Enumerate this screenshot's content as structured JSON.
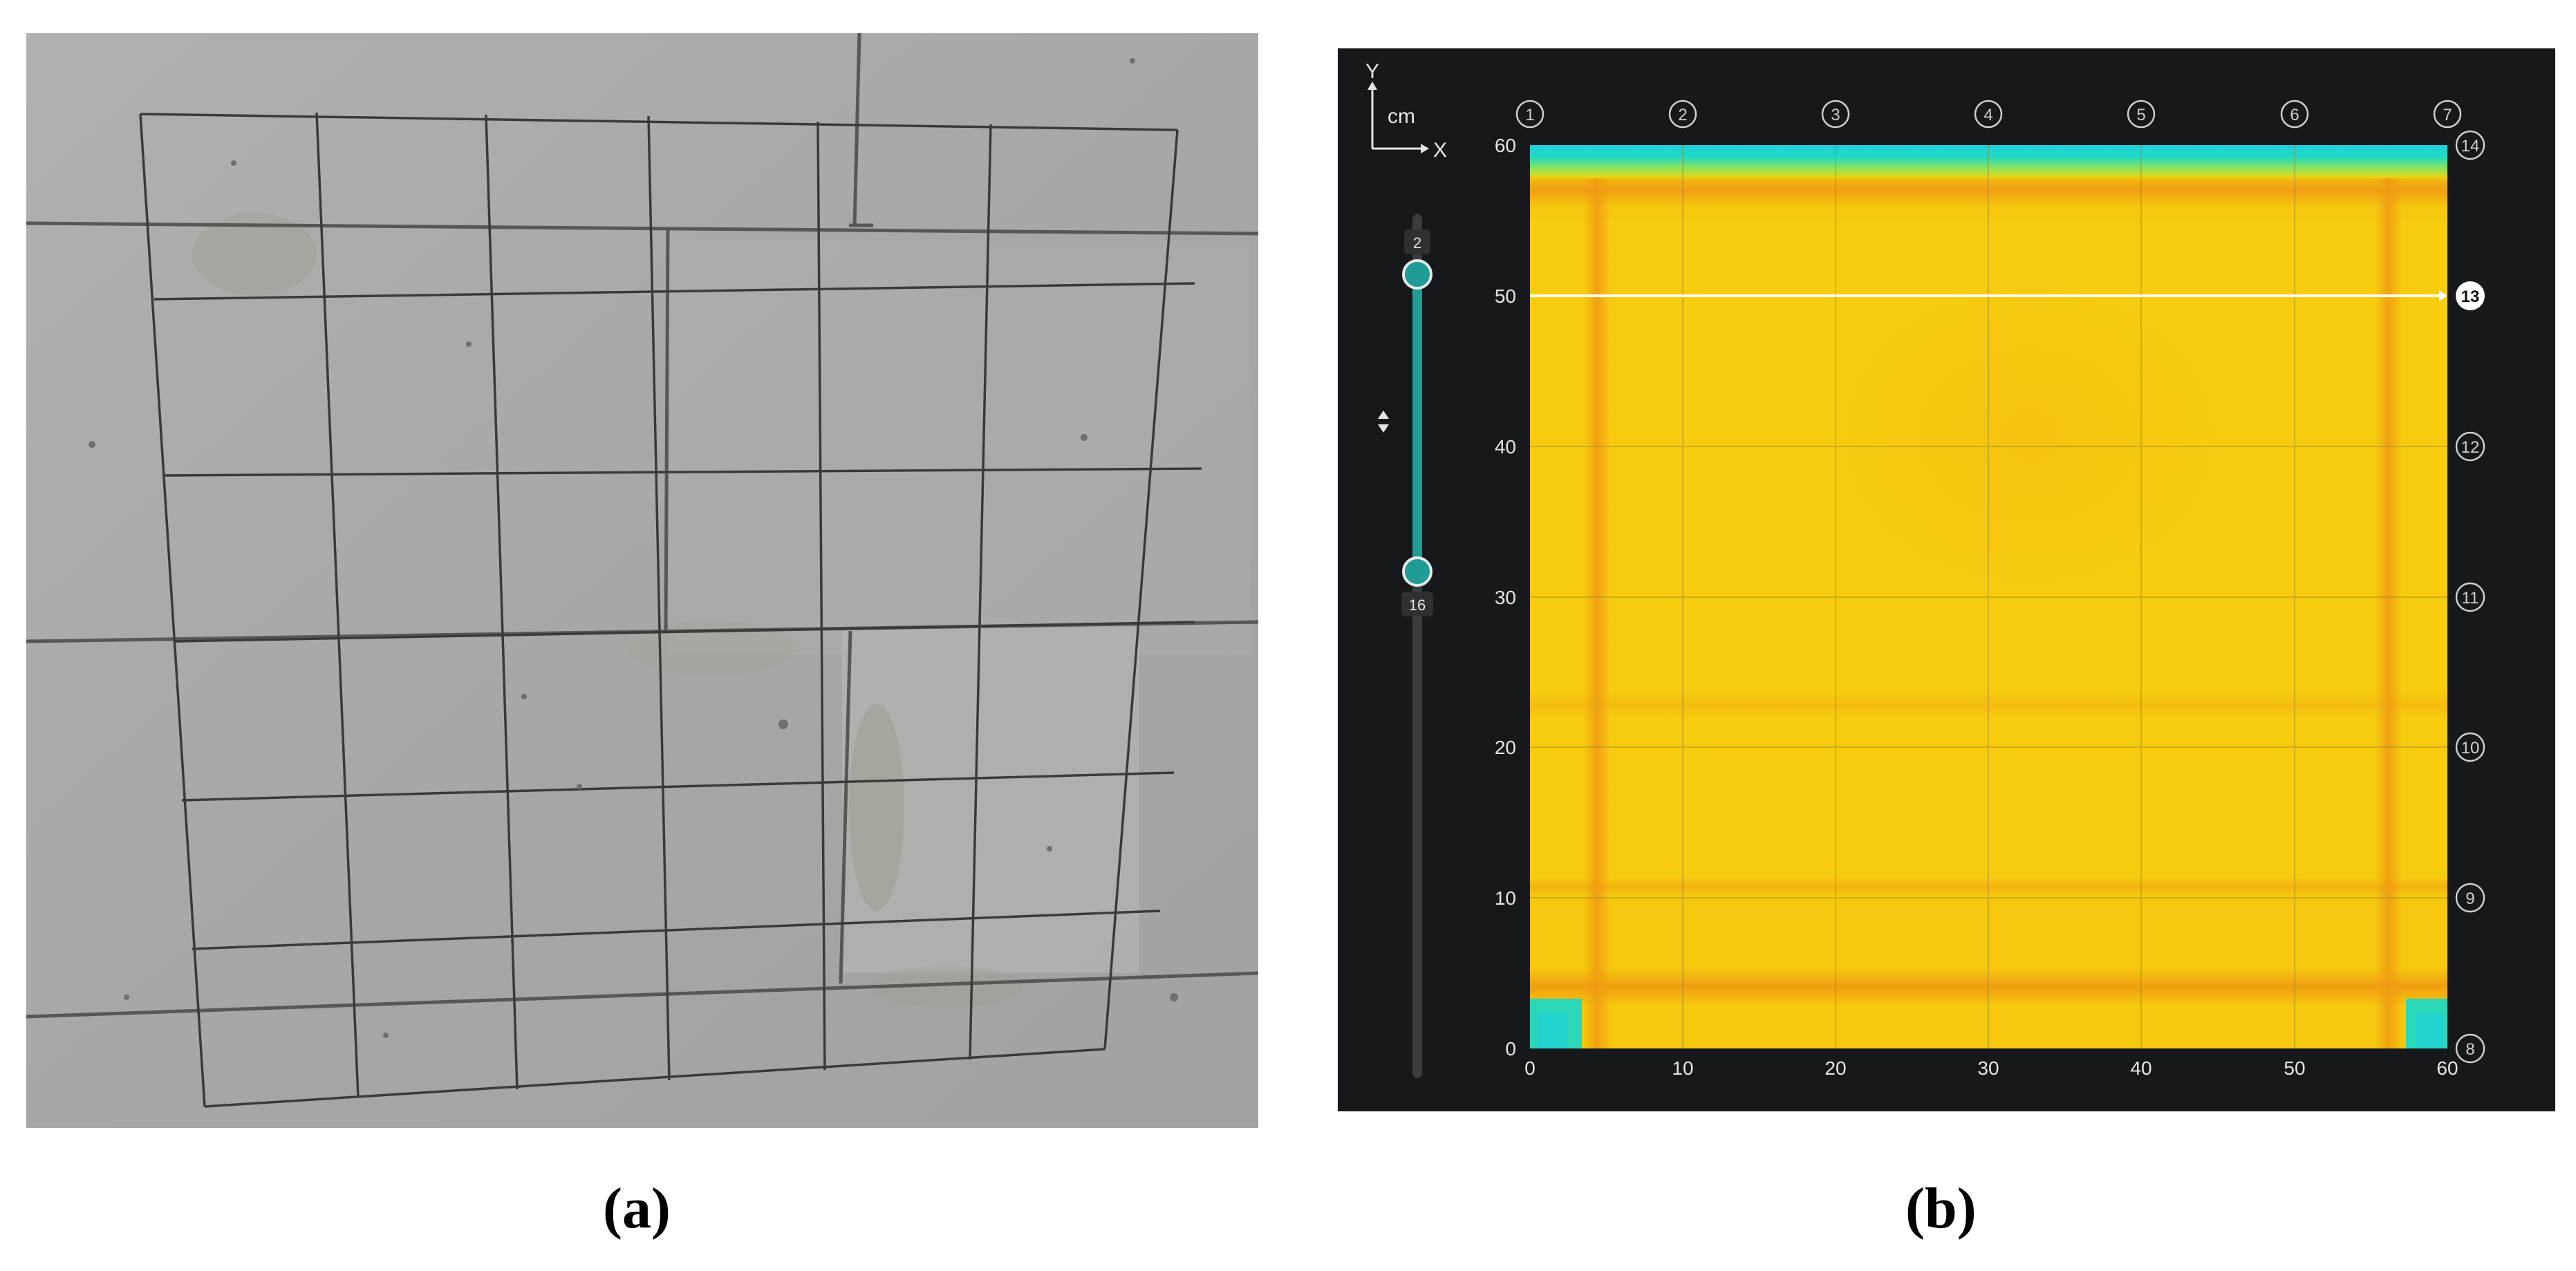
{
  "captions": {
    "a": "(a)",
    "b": "(b)"
  },
  "scan_view": {
    "axis_icon": {
      "y": "Y",
      "x": "X",
      "unit": "cm"
    },
    "x_ticks": [
      "0",
      "10",
      "20",
      "30",
      "40",
      "50",
      "60"
    ],
    "y_ticks": [
      "0",
      "10",
      "20",
      "30",
      "40",
      "50",
      "60"
    ],
    "top_markers": [
      "1",
      "2",
      "3",
      "4",
      "5",
      "6",
      "7"
    ],
    "right_markers": [
      "8",
      "9",
      "10",
      "11",
      "12",
      "13",
      "14"
    ],
    "active_marker": "13",
    "depth_slider": {
      "upper_value": "2",
      "lower_value": "16"
    }
  },
  "colors": {
    "background": "#16181b",
    "heatmap_base": "#f6c80e",
    "heatmap_hot": "#ef9a12",
    "heatmap_cold": "#21d7cf",
    "slider_accent": "#1e9c95",
    "photo_wall": "#a9a9a7"
  }
}
